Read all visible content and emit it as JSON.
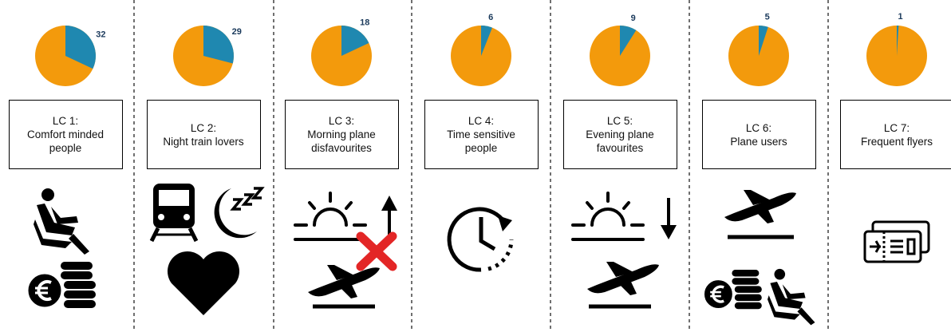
{
  "panels": [
    {
      "title": "LC 1:",
      "name": "Comfort minded people",
      "share": 32
    },
    {
      "title": "LC 2:",
      "name": "Night train lovers",
      "share": 29
    },
    {
      "title": "LC 3:",
      "name": "Morning plane disfavourites",
      "share": 18
    },
    {
      "title": "LC 4:",
      "name": "Time sensitive people",
      "share": 6
    },
    {
      "title": "LC 5:",
      "name": "Evening plane favourites",
      "share": 9
    },
    {
      "title": "LC 6:",
      "name": "Plane users",
      "share": 5
    },
    {
      "title": "LC 7:",
      "name": "Frequent flyers",
      "share": 1
    }
  ]
}
